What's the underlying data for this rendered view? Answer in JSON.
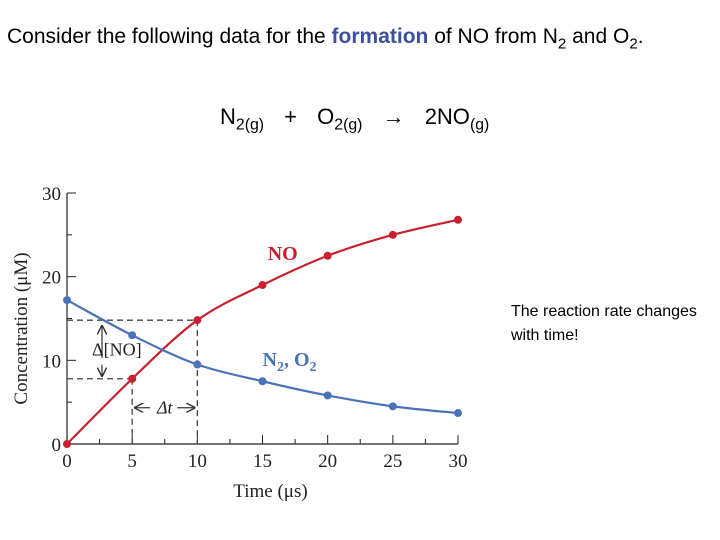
{
  "intro": {
    "part1": "Consider the following data for the ",
    "highlight": "formation",
    "part2": " of NO from N",
    "n2_sub": "2",
    "part3": " and O",
    "o2_sub": "2",
    "part4": "."
  },
  "equation": {
    "n2": "N",
    "n2_sub": "2(g)",
    "plus": "+",
    "o2": "O",
    "o2_sub": "2(g)",
    "arrow": "→",
    "no": "2NO",
    "no_sub": "(g)"
  },
  "note": "The reaction rate changes with time!",
  "colors": {
    "no": "#c8202f",
    "n2o2": "#4a72b8",
    "highlight": "#3d4fa0"
  },
  "chart_data": {
    "type": "line",
    "xlabel": "Time (μs)",
    "ylabel": "Concentration (μM)",
    "xlim": [
      0,
      30
    ],
    "ylim": [
      0,
      30
    ],
    "xticks": [
      0,
      5,
      10,
      15,
      20,
      25,
      30
    ],
    "yticks": [
      0,
      10,
      20,
      30
    ],
    "series": [
      {
        "name": "NO",
        "label": "NO",
        "color": "#c8202f",
        "x": [
          0,
          5,
          10,
          15,
          20,
          25,
          30
        ],
        "y": [
          0,
          7.8,
          14.8,
          19,
          22.5,
          25,
          26.8
        ]
      },
      {
        "name": "N2, O2",
        "label_main": "N",
        "label_sub": "2",
        "label_rest": ", O",
        "label_sub2": "2",
        "color": "#4a72b8",
        "x": [
          0,
          5,
          10,
          15,
          20,
          25,
          30
        ],
        "y": [
          17.2,
          13,
          9.5,
          7.5,
          5.8,
          4.5,
          3.7
        ]
      }
    ],
    "annotations": {
      "delta_conc": "Δ[NO]",
      "delta_t": "Δt",
      "t1": 5,
      "t2": 10,
      "c1": 7.8,
      "c2": 14.8
    }
  }
}
